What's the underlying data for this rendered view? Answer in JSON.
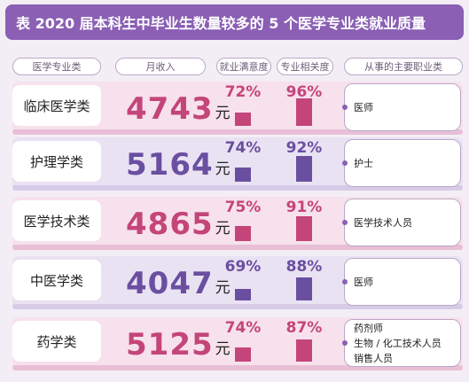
{
  "title": "表 2020 届本科生中毕业生数量较多的 5 个医学专业类就业质量",
  "headers": {
    "major": "医学专业类",
    "income": "月收入",
    "satisfaction": "就业满意度",
    "relevance": "专业相关度",
    "occupation": "从事的主要职业类"
  },
  "unit": "元",
  "colors": {
    "pink": "#c4457a",
    "purple": "#6a4fa0",
    "pink_stripe": "#e8bfd6",
    "purple_stripe": "#d8cbe8",
    "pink_row_bg": "#f7e1ec",
    "purple_row_bg": "#e9e2f3"
  },
  "chart_data": {
    "type": "table",
    "title": "表 2020 届本科生中毕业生数量较多的 5 个医学专业类就业质量",
    "columns": [
      "医学专业类",
      "月收入",
      "就业满意度",
      "专业相关度",
      "从事的主要职业类"
    ],
    "rows": [
      {
        "major": "临床医学类",
        "income": 4743,
        "satisfaction": 72,
        "relevance": 96,
        "occupations": [
          "医师"
        ]
      },
      {
        "major": "护理学类",
        "income": 5164,
        "satisfaction": 74,
        "relevance": 92,
        "occupations": [
          "护士"
        ]
      },
      {
        "major": "医学技术类",
        "income": 4865,
        "satisfaction": 75,
        "relevance": 91,
        "occupations": [
          "医学技术人员"
        ]
      },
      {
        "major": "中医学类",
        "income": 4047,
        "satisfaction": 69,
        "relevance": 88,
        "occupations": [
          "医师"
        ]
      },
      {
        "major": "药学类",
        "income": 5125,
        "satisfaction": 74,
        "relevance": 87,
        "occupations": [
          "药剂师",
          "生物 / 化工技术人员",
          "销售人员"
        ]
      }
    ]
  }
}
